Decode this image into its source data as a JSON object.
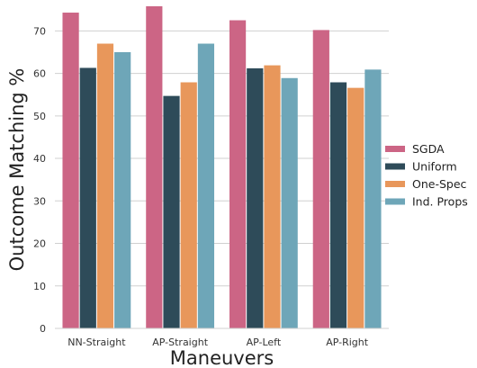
{
  "chart_data": {
    "type": "bar",
    "xlabel": "Maneuvers",
    "ylabel": "Outcome Matching %",
    "ylim": [
      0,
      76
    ],
    "yticks": [
      0,
      10,
      20,
      30,
      40,
      50,
      60,
      70
    ],
    "grid": "horizontal",
    "legend_position": "right",
    "categories": [
      "NN-Straight",
      "AP-Straight",
      "AP-Left",
      "AP-Right"
    ],
    "series": [
      {
        "name": "SGDA",
        "color": "#cc6585",
        "values": [
          74.3,
          75.8,
          72.5,
          70.2
        ]
      },
      {
        "name": "Uniform",
        "color": "#2e4b59",
        "values": [
          61.3,
          54.7,
          61.2,
          57.9
        ]
      },
      {
        "name": "One-Spec",
        "color": "#e8975b",
        "values": [
          67.0,
          57.9,
          61.9,
          56.6
        ]
      },
      {
        "name": "Ind. Props",
        "color": "#6ea6b8",
        "values": [
          65.0,
          67.0,
          58.9,
          60.9
        ]
      }
    ]
  }
}
